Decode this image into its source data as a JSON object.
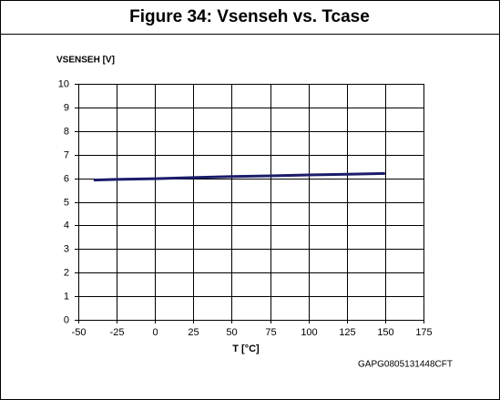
{
  "chart_data": {
    "type": "line",
    "title": "Figure 34: Vsenseh vs. Tcase",
    "y_label": "VSENSEH [V]",
    "x_label": "T [°C]",
    "code": "GAPG0805131448CFT",
    "x": [
      -40,
      -25,
      0,
      25,
      50,
      75,
      100,
      125,
      150
    ],
    "series": [
      {
        "name": "Vsenseh",
        "color": "#1c1c6b",
        "values": [
          5.92,
          5.95,
          5.98,
          6.03,
          6.07,
          6.1,
          6.14,
          6.17,
          6.2
        ]
      }
    ],
    "xlim": [
      -50,
      175
    ],
    "xticks": [
      -50,
      -25,
      0,
      25,
      50,
      75,
      100,
      125,
      150,
      175
    ],
    "ylim": [
      0,
      10
    ],
    "yticks": [
      0,
      1,
      2,
      3,
      4,
      5,
      6,
      7,
      8,
      9,
      10
    ],
    "grid": true
  }
}
